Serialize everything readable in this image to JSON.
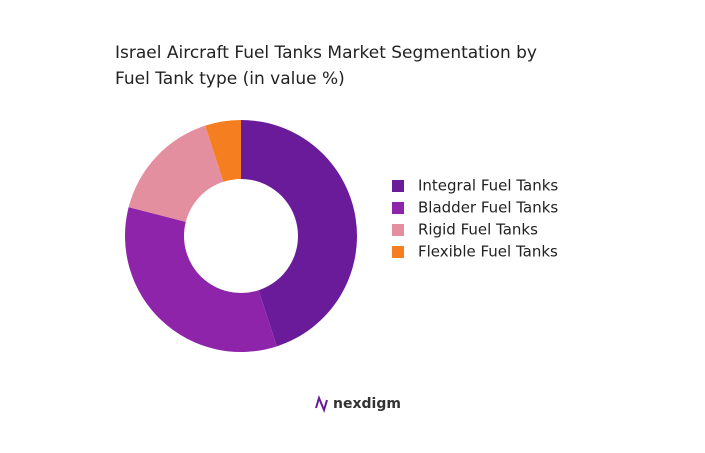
{
  "chart_data": {
    "type": "donut",
    "title": "Israel Aircraft Fuel Tanks Market Segmentation by Fuel Tank type (in value %)",
    "categories": [
      "Integral Fuel Tanks",
      "Bladder Fuel Tanks",
      "Rigid Fuel Tanks",
      "Flexible Fuel Tanks"
    ],
    "values": [
      45,
      34,
      16,
      5
    ],
    "colors": [
      "#6a1b9a",
      "#8e24aa",
      "#e48fa0",
      "#f57f20"
    ],
    "legend": "right"
  },
  "brand": "nexdigm"
}
